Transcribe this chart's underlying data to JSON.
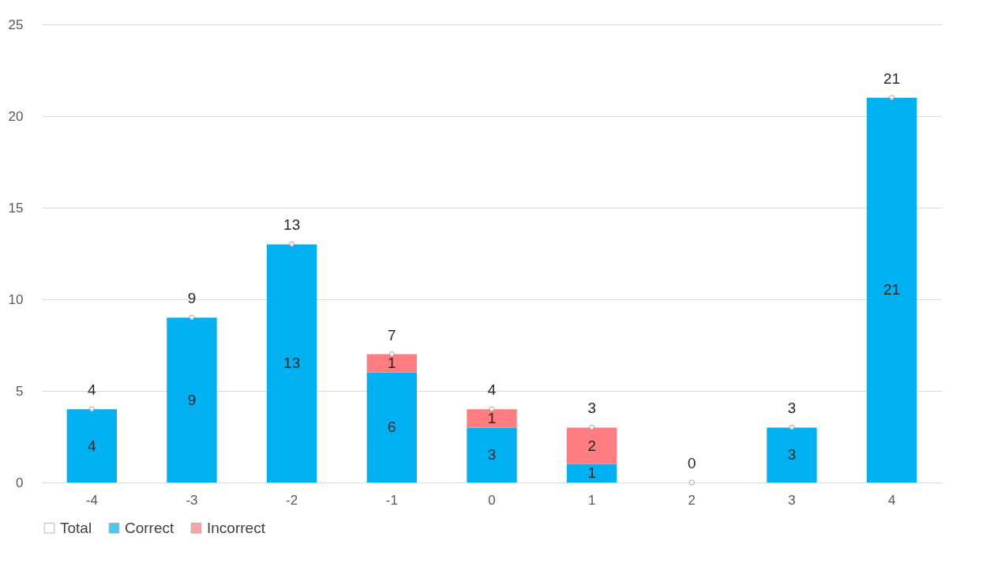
{
  "chart_data": {
    "type": "bar",
    "stacked": true,
    "categories": [
      "-4",
      "-3",
      "-2",
      "-1",
      "0",
      "1",
      "2",
      "3",
      "4"
    ],
    "series": [
      {
        "name": "Total",
        "type": "scatter",
        "color": "#ffffff",
        "values": [
          4,
          9,
          13,
          7,
          4,
          3,
          0,
          3,
          21
        ],
        "value_labels": [
          "4",
          "9",
          "13",
          "7",
          "4",
          "3",
          "0",
          "3",
          "21"
        ]
      },
      {
        "name": "Correct",
        "color": "#00b0f0",
        "values": [
          4,
          9,
          13,
          6,
          3,
          1,
          0,
          3,
          21
        ],
        "value_labels": [
          "4",
          "9",
          "13",
          "6",
          "3",
          "1",
          null,
          "3",
          "21"
        ]
      },
      {
        "name": "Incorrect",
        "color": "#ff7c80",
        "values": [
          0,
          0,
          0,
          1,
          1,
          2,
          0,
          0,
          0
        ],
        "value_labels": [
          null,
          null,
          null,
          "1",
          "1",
          "2",
          null,
          null,
          null
        ]
      }
    ],
    "ylim": [
      0,
      25
    ],
    "yticks": [
      0,
      5,
      10,
      15,
      20,
      25
    ],
    "grid": "y",
    "legend": "bottom"
  }
}
